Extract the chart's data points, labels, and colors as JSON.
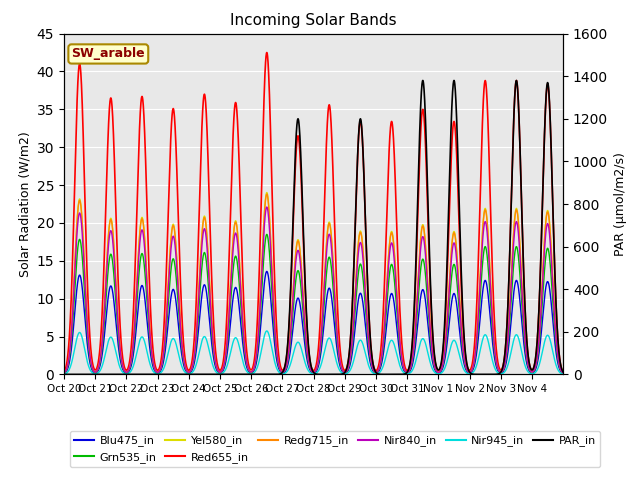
{
  "title": "Incoming Solar Bands",
  "ylabel_left": "Solar Radiation (W/m2)",
  "ylabel_right": "PAR (μmol/m2/s)",
  "annotation": "SW_arable",
  "n_days": 16,
  "ylim_left": [
    0,
    45
  ],
  "ylim_right": [
    0,
    1600
  ],
  "x_tick_labels": [
    "Oct 20",
    "Oct 21",
    "Oct 22",
    "Oct 23",
    "Oct 24",
    "Oct 25",
    "Oct 26",
    "Oct 27",
    "Oct 28",
    "Oct 29",
    "Oct 30",
    "Oct 31",
    "Nov 1",
    "Nov 2",
    "Nov 3",
    "Nov 4"
  ],
  "series_colors": {
    "Blu475_in": "#0000dd",
    "Grn535_in": "#00bb00",
    "Yel580_in": "#dddd00",
    "Red655_in": "#ff0000",
    "Redg715_in": "#ff8800",
    "Nir840_in": "#bb00bb",
    "Nir945_in": "#00dddd",
    "PAR_in": "#000000"
  },
  "day_peaks_Red655": [
    41.0,
    36.5,
    36.7,
    35.1,
    37.0,
    35.9,
    42.5,
    31.5,
    35.6,
    33.5,
    33.4,
    35.0,
    33.4,
    38.8,
    38.8,
    38.3
  ],
  "day_peaks_PAR": [
    0,
    0,
    0,
    0,
    0,
    0,
    0,
    1200,
    0,
    1200,
    0,
    1380,
    1380,
    0,
    1380,
    1370
  ],
  "band_fracs": {
    "Blu475_in": 0.32,
    "Grn535_in": 0.435,
    "Yel580_in": 0.565,
    "Red655_in": 1.0,
    "Redg715_in": 0.56,
    "Nir840_in": 0.52,
    "Nir945_in": 0.135
  },
  "sigma": 0.16,
  "pts_per_day": 200,
  "fig_facecolor": "#ffffff",
  "bg_color": "#e8e8e8",
  "grid_color": "#ffffff",
  "lw_main": 1.0,
  "lw_red": 1.2,
  "lw_par": 1.2
}
